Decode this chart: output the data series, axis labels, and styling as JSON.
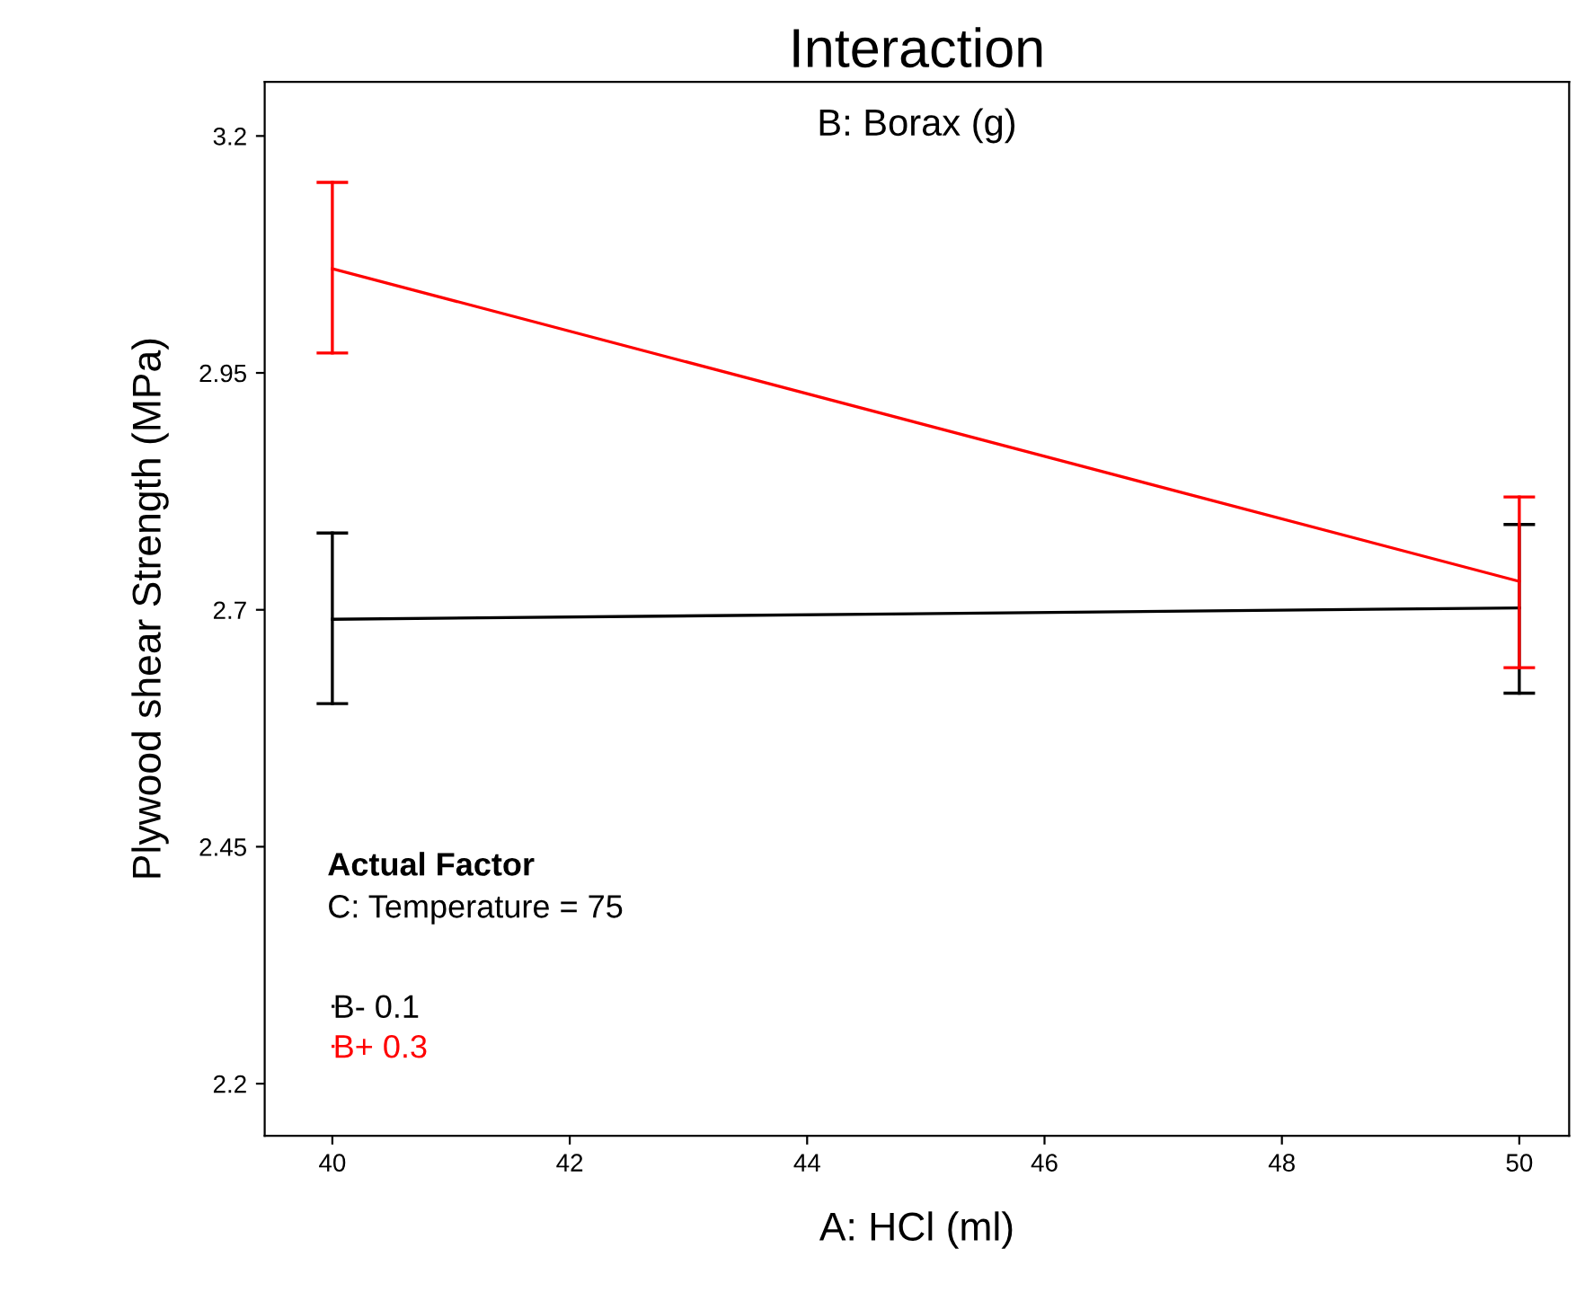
{
  "chart_data": {
    "type": "line",
    "title": "Interaction",
    "legend_title": "B: Borax (g)",
    "xlabel": "A: HCl (ml)",
    "ylabel": "Plywood shear Strength (MPa)",
    "x": [
      40,
      50
    ],
    "series": [
      {
        "name": "B- 0.1",
        "color": "#000000",
        "values": [
          2.69,
          2.702
        ],
        "errors": [
          [
            2.601,
            2.781
          ],
          [
            2.612,
            2.79
          ]
        ]
      },
      {
        "name": "B+ 0.3",
        "color": "#ff0000",
        "values": [
          3.06,
          2.73
        ],
        "errors": [
          [
            2.971,
            3.151
          ],
          [
            2.639,
            2.819
          ]
        ]
      }
    ],
    "annotations": [
      "Actual Factor",
      "C: Temperature = 75"
    ],
    "xlim": [
      39.43,
      50.42
    ],
    "ylim": [
      2.145,
      3.257
    ],
    "xticks": [
      40,
      42,
      44,
      46,
      48,
      50
    ],
    "yticks": [
      2.2,
      2.45,
      2.7,
      2.95,
      3.2
    ],
    "grid": false,
    "legend": "bottom left",
    "marker": "none",
    "line_style": "solid"
  }
}
